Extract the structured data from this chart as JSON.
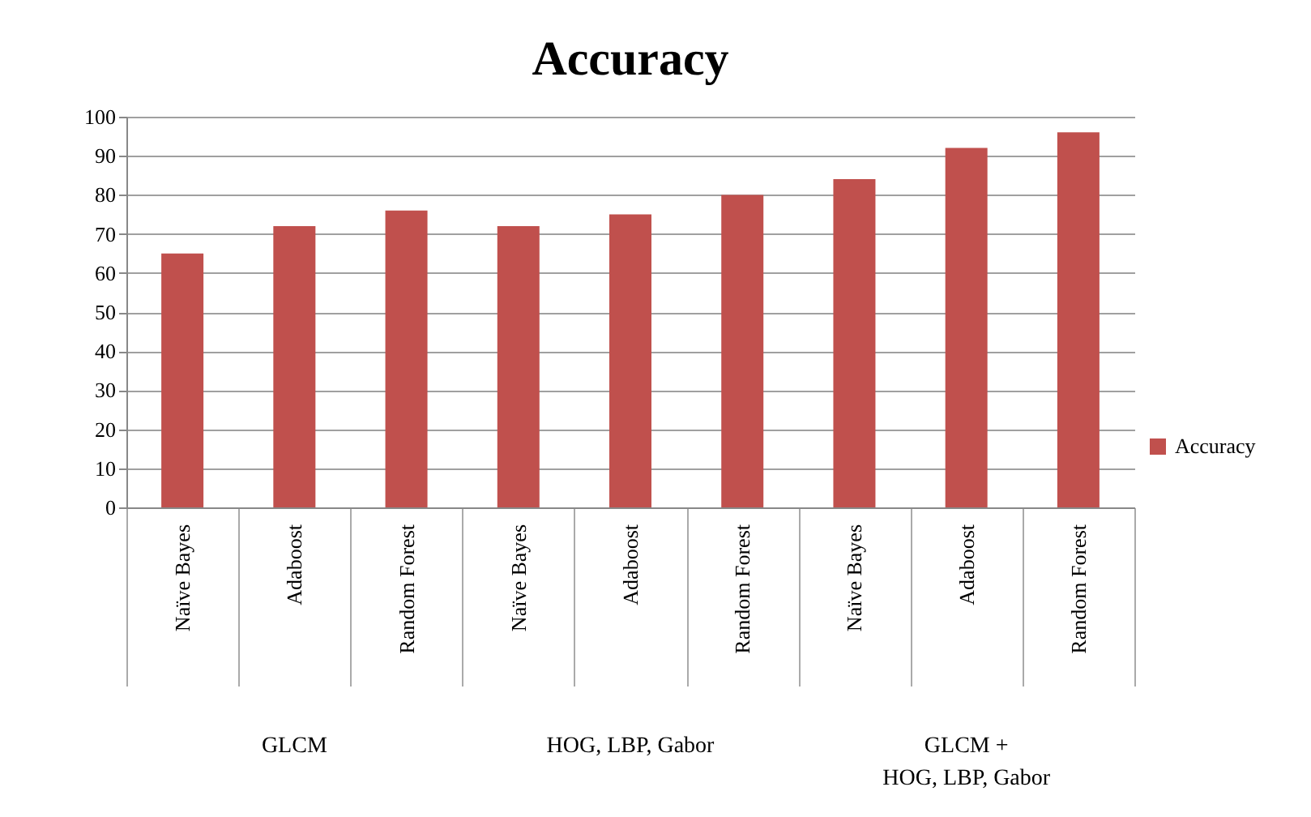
{
  "chart_data": {
    "type": "bar",
    "title": "Accuracy",
    "categories": [
      "Naïve Bayes",
      "Adaboost",
      "Random Forest",
      "Naïve Bayes",
      "Adaboost",
      "Random Forest",
      "Naïve Bayes",
      "Adaboost",
      "Random Forest"
    ],
    "series": [
      {
        "name": "Accuracy",
        "color": "#c0504d",
        "values": [
          65,
          72,
          76,
          72,
          75,
          80,
          84,
          92,
          96
        ]
      }
    ],
    "ylim": [
      0,
      100
    ],
    "yticks": [
      0,
      10,
      20,
      30,
      40,
      50,
      60,
      70,
      80,
      90,
      100
    ],
    "grid": "y",
    "legend": "right",
    "annotations": [
      "GLCM",
      "HOG, LBP, Gabor",
      "GLCM +\nHOG, LBP, Gabor"
    ]
  }
}
